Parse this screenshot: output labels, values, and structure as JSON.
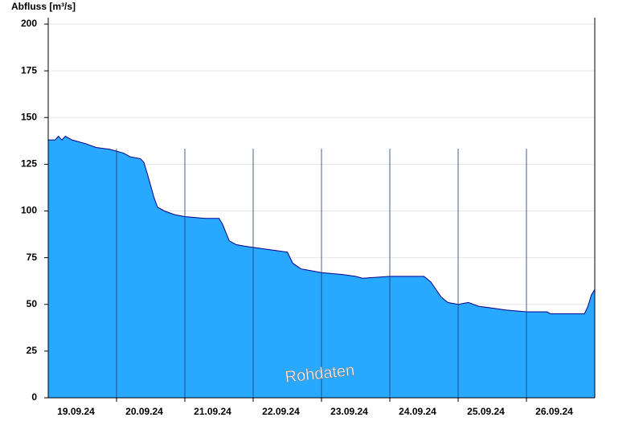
{
  "chart_data": {
    "type": "area",
    "y_label": "Abfluss [m³/s]",
    "annotation": "Rohdaten",
    "x": [
      0,
      0.1,
      0.15,
      0.2,
      0.25,
      0.35,
      0.45,
      0.55,
      0.7,
      0.9,
      1.0,
      1.1,
      1.2,
      1.35,
      1.4,
      1.45,
      1.55,
      1.6,
      1.7,
      1.85,
      2.0,
      2.3,
      2.5,
      2.55,
      2.65,
      2.75,
      2.9,
      3.1,
      3.3,
      3.5,
      3.58,
      3.7,
      3.85,
      4.0,
      4.3,
      4.5,
      4.6,
      5.0,
      5.5,
      5.6,
      5.75,
      5.85,
      6.0,
      6.15,
      6.3,
      6.5,
      6.7,
      7.0,
      7.3,
      7.35,
      7.85,
      7.9,
      7.95,
      8.0
    ],
    "values": [
      138,
      138,
      140,
      138,
      140,
      138,
      137,
      136,
      134,
      133,
      132,
      131,
      129,
      128,
      126,
      120,
      107,
      102,
      100,
      98,
      97,
      96,
      96,
      93,
      84,
      82,
      81,
      80,
      79,
      78,
      72,
      69,
      68,
      67,
      66,
      65,
      64,
      65,
      65,
      62,
      54,
      51,
      50,
      51,
      49,
      48,
      47,
      46,
      46,
      45,
      45,
      49,
      55,
      58
    ],
    "color": "#29a8ff",
    "line_color": "#00008b",
    "xlim": [
      0,
      8
    ],
    "xticks": [
      {
        "value": 0.5,
        "label": "19.09.24"
      },
      {
        "value": 1.5,
        "label": "20.09.24"
      },
      {
        "value": 2.5,
        "label": "21.09.24"
      },
      {
        "value": 3.5,
        "label": "22.09.24"
      },
      {
        "value": 4.5,
        "label": "23.09.24"
      },
      {
        "value": 5.5,
        "label": "24.09.24"
      },
      {
        "value": 6.5,
        "label": "25.09.24"
      },
      {
        "value": 7.5,
        "label": "26.09.24"
      }
    ],
    "xgrid": [
      1,
      2,
      3,
      4,
      5,
      6,
      7
    ],
    "ylim": [
      0,
      200
    ],
    "yticks": [
      0,
      25,
      50,
      75,
      100,
      125,
      150,
      175,
      200
    ],
    "grid": true
  }
}
